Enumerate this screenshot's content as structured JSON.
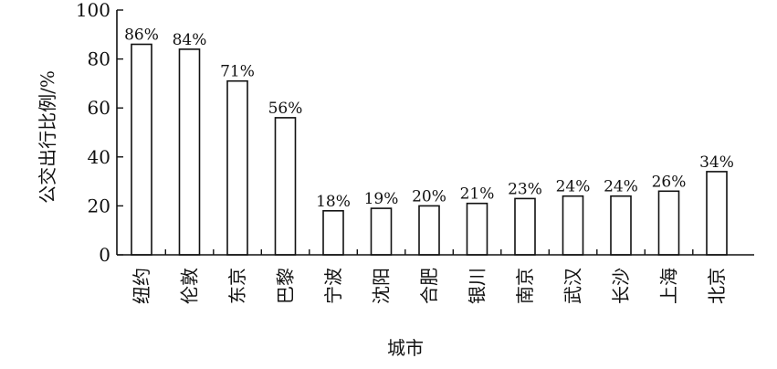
{
  "chart_data": {
    "type": "bar",
    "categories": [
      "纽约",
      "伦敦",
      "东京",
      "巴黎",
      "宁波",
      "沈阳",
      "合肥",
      "银川",
      "南京",
      "武汉",
      "长沙",
      "上海",
      "北京"
    ],
    "values": [
      86,
      84,
      71,
      56,
      18,
      19,
      20,
      21,
      23,
      24,
      24,
      26,
      34
    ],
    "data_labels": [
      "86%",
      "84%",
      "71%",
      "56%",
      "18%",
      "19%",
      "20%",
      "21%",
      "23%",
      "24%",
      "24%",
      "26%",
      "34%"
    ],
    "xlabel": "城市",
    "ylabel": "公交出行比例/%",
    "ylim": [
      0,
      100
    ],
    "yticks": [
      0,
      20,
      40,
      60,
      80,
      100
    ],
    "ytick_labels": [
      "0",
      "20",
      "40",
      "60",
      "80",
      "100"
    ],
    "grid": false,
    "bar_fill": "#ffffff",
    "bar_stroke": "#111111"
  }
}
